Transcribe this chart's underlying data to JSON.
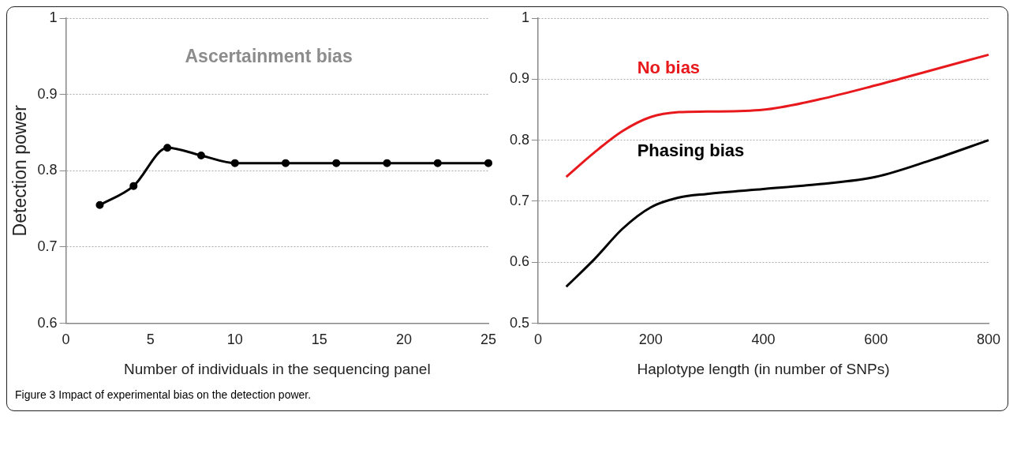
{
  "chart_data": [
    {
      "type": "line",
      "title": "Ascertainment bias",
      "xlabel": "Number of individuals in the sequencing panel",
      "ylabel": "Detection power",
      "xlim": [
        0,
        25
      ],
      "xticks": [
        0,
        5,
        10,
        15,
        20,
        25
      ],
      "ylim": [
        0.6,
        1
      ],
      "yticks": [
        0.6,
        0.7,
        0.8,
        0.9,
        1
      ],
      "grid": "y",
      "marker": "circle",
      "legend": false,
      "series": [
        {
          "color": "#000000",
          "x": [
            2,
            4,
            6,
            8,
            10,
            13,
            16,
            19,
            22,
            25
          ],
          "values": [
            0.755,
            0.78,
            0.83,
            0.82,
            0.81,
            0.81,
            0.81,
            0.81,
            0.81,
            0.81
          ]
        }
      ]
    },
    {
      "type": "line",
      "xlabel": "Haplotype length (in number of SNPs)",
      "xlim": [
        0,
        800
      ],
      "xticks": [
        0,
        200,
        400,
        600,
        800
      ],
      "ylim": [
        0.5,
        1
      ],
      "yticks": [
        0.5,
        0.6,
        0.7,
        0.8,
        0.9,
        1
      ],
      "grid": "y",
      "marker": "none",
      "legend": false,
      "annotations": [
        "Figure 3 Impact of experimental bias on the detection power."
      ],
      "series": [
        {
          "name": "No bias",
          "color": "#e8191c",
          "x": [
            50,
            100,
            150,
            200,
            250,
            300,
            400,
            500,
            600,
            700,
            800
          ],
          "values": [
            0.74,
            0.78,
            0.815,
            0.838,
            0.846,
            0.847,
            0.85,
            0.867,
            0.89,
            0.915,
            0.94
          ]
        },
        {
          "name": "Phasing bias",
          "color": "#000000",
          "x": [
            50,
            100,
            150,
            200,
            250,
            300,
            400,
            500,
            600,
            700,
            800
          ],
          "values": [
            0.56,
            0.605,
            0.655,
            0.69,
            0.706,
            0.712,
            0.72,
            0.728,
            0.74,
            0.768,
            0.8
          ]
        }
      ]
    }
  ]
}
